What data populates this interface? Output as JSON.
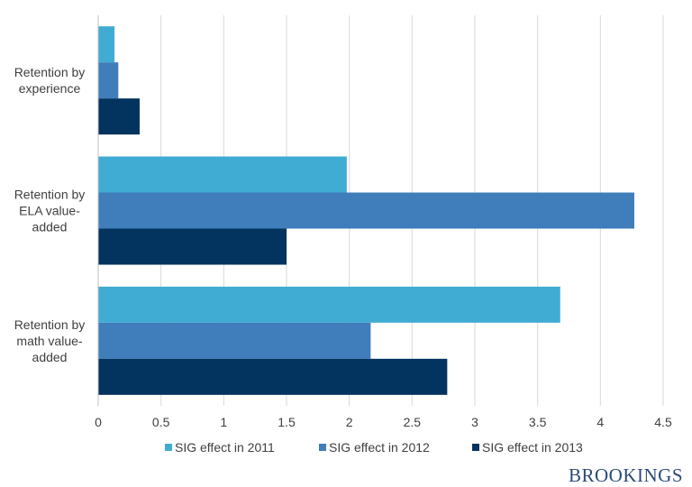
{
  "chart_data": {
    "type": "bar",
    "orientation": "horizontal",
    "categories": [
      "Retention by experience",
      "Retention by ELA value-added",
      "Retention by math value-added"
    ],
    "category_label_lines": [
      [
        "Retention by",
        "experience"
      ],
      [
        "Retention by",
        "ELA value-",
        "added"
      ],
      [
        "Retention by",
        "math value-",
        "added"
      ]
    ],
    "series": [
      {
        "name": "SIG effect in 2011",
        "color": "#41acd3",
        "values": [
          0.13,
          1.98,
          3.68
        ]
      },
      {
        "name": "SIG effect in 2012",
        "color": "#3f7dbb",
        "values": [
          0.16,
          4.27,
          2.17
        ]
      },
      {
        "name": "SIG effect in 2013",
        "color": "#03335f",
        "values": [
          0.33,
          1.5,
          2.78
        ]
      }
    ],
    "xlim": [
      0,
      4.5
    ],
    "x_ticks": [
      "0",
      "0.5",
      "1",
      "1.5",
      "2",
      "2.5",
      "3",
      "3.5",
      "4",
      "4.5"
    ],
    "title": "",
    "xlabel": "",
    "ylabel": "",
    "grid": "vertical",
    "legend": "bottom"
  },
  "brand": "BROOKINGS"
}
